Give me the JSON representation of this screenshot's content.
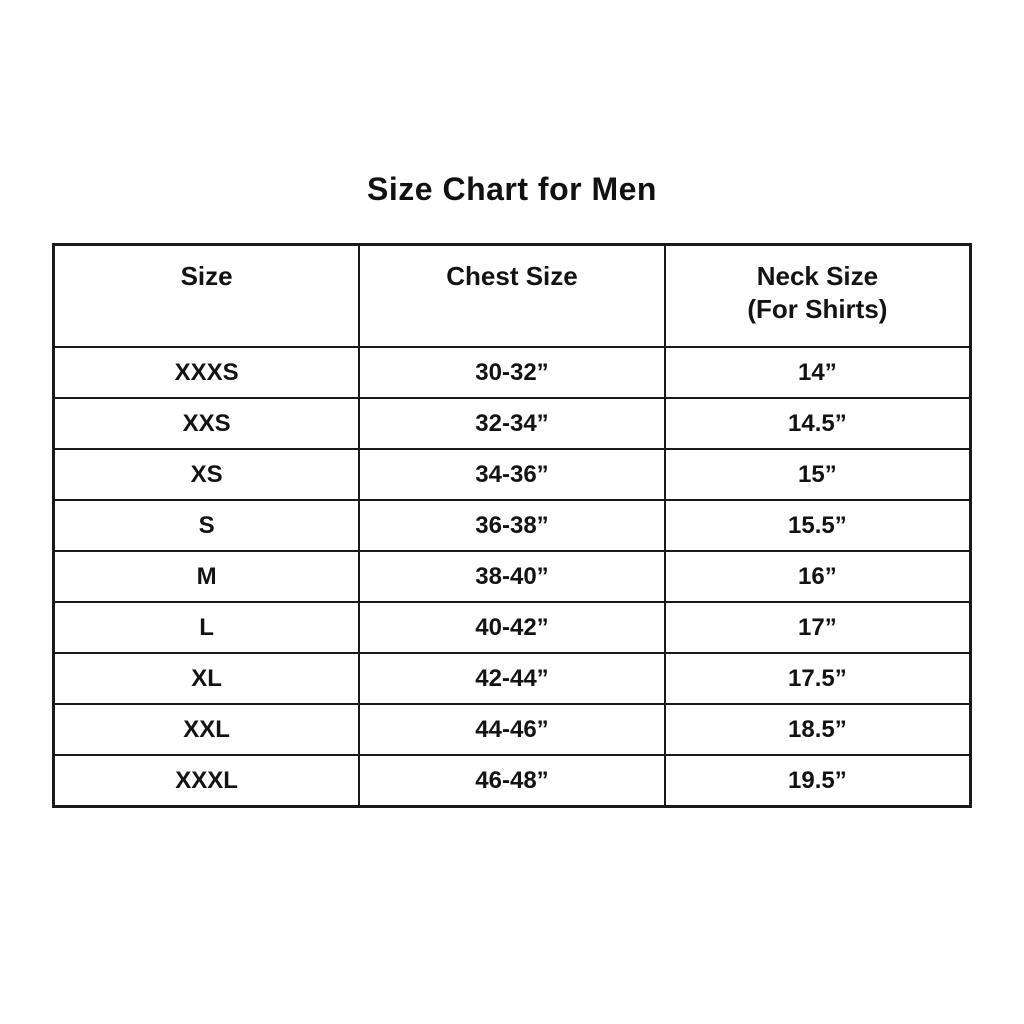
{
  "page": {
    "title": "Size Chart for Men"
  },
  "table": {
    "columns": {
      "size": "Size",
      "chest": "Chest Size",
      "neck": "Neck Size\n(For Shirts)"
    },
    "rows": [
      {
        "size": "XXXS",
        "chest": "30-32”",
        "neck": "14”"
      },
      {
        "size": "XXS",
        "chest": "32-34”",
        "neck": "14.5”"
      },
      {
        "size": "XS",
        "chest": "34-36”",
        "neck": "15”"
      },
      {
        "size": "S",
        "chest": "36-38”",
        "neck": "15.5”"
      },
      {
        "size": "M",
        "chest": "38-40”",
        "neck": "16”"
      },
      {
        "size": "L",
        "chest": "40-42”",
        "neck": "17”"
      },
      {
        "size": "XL",
        "chest": "42-44”",
        "neck": "17.5”"
      },
      {
        "size": "XXL",
        "chest": "44-46”",
        "neck": "18.5”"
      },
      {
        "size": "XXXL",
        "chest": "46-48”",
        "neck": "19.5”"
      }
    ]
  },
  "colors": {
    "background": "#ffffff",
    "text": "#131313",
    "border": "#1a1a1a"
  }
}
